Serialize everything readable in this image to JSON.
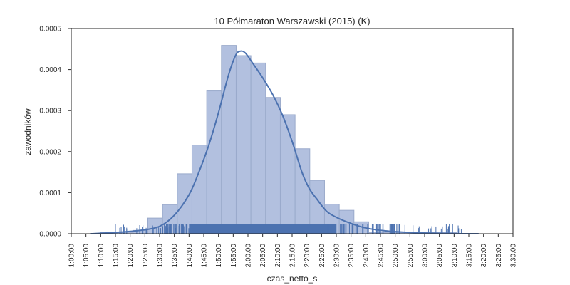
{
  "chart_data": {
    "type": "bar",
    "title": "10 Półmaraton Warszawski (2015) (K)",
    "xlabel": "czas_netto_s",
    "ylabel": "zawodników",
    "x_range_seconds": [
      3600,
      12600
    ],
    "ylim": [
      0,
      0.0005
    ],
    "y_ticks": [
      "0.0000",
      "0.0001",
      "0.0002",
      "0.0003",
      "0.0004",
      "0.0005"
    ],
    "x_ticks": [
      "1:00:00",
      "1:05:00",
      "1:10:00",
      "1:15:00",
      "1:20:00",
      "1:25:00",
      "1:30:00",
      "1:35:00",
      "1:40:00",
      "1:45:00",
      "1:50:00",
      "1:55:00",
      "2:00:00",
      "2:05:00",
      "2:10:00",
      "2:15:00",
      "2:20:00",
      "2:25:00",
      "2:30:00",
      "2:35:00",
      "2:40:00",
      "2:45:00",
      "2:50:00",
      "2:55:00",
      "3:00:00",
      "3:05:00",
      "3:10:00",
      "3:15:00",
      "3:20:00",
      "3:25:00",
      "3:30:00"
    ],
    "histogram": {
      "bin_edges_seconds": [
        4200,
        4860,
        5160,
        5460,
        5760,
        6060,
        6360,
        6660,
        6960,
        7260,
        7560,
        7860,
        8160,
        8460,
        8760,
        9060,
        9360,
        9660,
        11460
      ],
      "values": [
        3e-06,
        8e-06,
        3.8e-05,
        7.1e-05,
        0.000146,
        0.000216,
        0.000348,
        0.000459,
        0.000434,
        0.000416,
        0.000332,
        0.00029,
        0.000207,
        0.00013,
        7.2e-05,
        5.7e-05,
        2.9e-05,
        3e-06
      ],
      "color": "#b2c0df",
      "edge_color": "#9aaacb"
    },
    "kde": {
      "x_seconds": [
        4000,
        4500,
        5000,
        5400,
        5700,
        6000,
        6200,
        6400,
        6600,
        6800,
        6950,
        7050,
        7150,
        7300,
        7500,
        7700,
        7900,
        8100,
        8300,
        8450,
        8600,
        8800,
        9000,
        9300,
        9600,
        10000,
        10500,
        11000,
        11500,
        11900
      ],
      "values": [
        0.0,
        3e-06,
        8e-06,
        1.8e-05,
        4.5e-05,
        9.5e-05,
        0.00015,
        0.000215,
        0.000295,
        0.000385,
        0.000435,
        0.000445,
        0.00044,
        0.000415,
        0.00038,
        0.00034,
        0.00029,
        0.000225,
        0.00015,
        0.00011,
        8.5e-05,
        5.5e-05,
        4e-05,
        2.5e-05,
        1.4e-05,
        7e-06,
        3e-06,
        1e-06,
        0.0,
        0.0
      ],
      "color": "#4c72b0"
    },
    "rug": {
      "color": "#4c72b0",
      "dense_range_seconds": [
        6000,
        9000
      ]
    }
  }
}
